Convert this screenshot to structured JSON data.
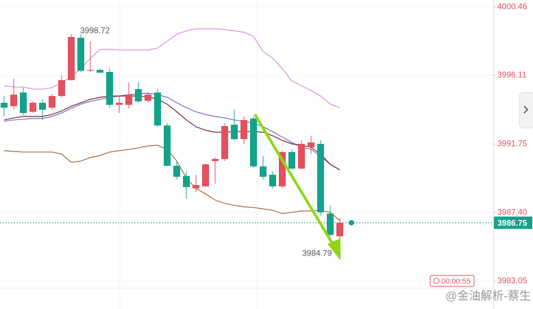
{
  "chart_data": {
    "type": "candlestick",
    "ylim": [
      3981.27,
      4000.9
    ],
    "yticks": [
      4000.46,
      3996.11,
      3991.75,
      {
        "value": 3987.4,
        "label": "3987.40"
      },
      3983.05
    ],
    "up_color": "#e2515e",
    "down_color": "#14a28c",
    "ohlc": [
      [
        3994.37,
        3994.8,
        3993.5,
        3994.06
      ],
      [
        3994.15,
        3995.89,
        3993.93,
        3994.89
      ],
      [
        3995.02,
        3995.33,
        3993.59,
        3993.72
      ],
      [
        3993.8,
        3994.46,
        3993.72,
        3994.37
      ],
      [
        3994.37,
        3994.59,
        3993.28,
        3993.93
      ],
      [
        3994.06,
        3994.93,
        3993.93,
        3994.8
      ],
      [
        3994.8,
        3996.11,
        3994.72,
        3995.81
      ],
      [
        3995.81,
        3998.72,
        3995.78,
        3998.55
      ],
      [
        3998.5,
        3998.72,
        3996.33,
        3996.41
      ],
      [
        3996.41,
        3998.28,
        3996.33,
        3996.46
      ],
      [
        3996.46,
        3996.54,
        3996.28,
        3996.28
      ],
      [
        3996.33,
        3996.54,
        3994.06,
        3994.24
      ],
      [
        3994.24,
        3994.8,
        3993.72,
        3994.37
      ],
      [
        3994.24,
        3995.67,
        3994.02,
        3994.89
      ],
      [
        3995.24,
        3995.67,
        3994.37,
        3994.46
      ],
      [
        3994.5,
        3995.02,
        3994.37,
        3994.89
      ],
      [
        3995.02,
        3995.24,
        3992.85,
        3992.93
      ],
      [
        3992.93,
        3993.07,
        3990.33,
        3990.37
      ],
      [
        3990.37,
        3990.67,
        3989.5,
        3989.67
      ],
      [
        3989.72,
        3990.02,
        3988.28,
        3989.02
      ],
      [
        3988.93,
        3989.8,
        3988.71,
        3989.15
      ],
      [
        3989.06,
        3990.5,
        3989.02,
        3990.46
      ],
      [
        3990.67,
        3990.89,
        3989.24,
        3990.8
      ],
      [
        3990.8,
        3993.07,
        3990.67,
        3992.89
      ],
      [
        3992.98,
        3993.93,
        3991.98,
        3992.06
      ],
      [
        3992.06,
        3993.5,
        3991.76,
        3993.28
      ],
      [
        3993.37,
        3993.5,
        3990.24,
        3990.33
      ],
      [
        3990.33,
        3990.98,
        3989.5,
        3989.67
      ],
      [
        3989.8,
        3990.02,
        3988.93,
        3989.06
      ],
      [
        3989.06,
        3991.33,
        3988.98,
        3991.24
      ],
      [
        3991.24,
        3991.41,
        3990.11,
        3990.19
      ],
      [
        3990.19,
        3991.98,
        3990.15,
        3991.76
      ],
      [
        3991.54,
        3992.28,
        3991.11,
        3991.85
      ],
      [
        3991.76,
        3991.98,
        3987.2,
        3987.41
      ],
      [
        3987.33,
        3987.85,
        3985.89,
        3985.98
      ],
      [
        3985.89,
        3987.05,
        3984.79,
        3986.75
      ]
    ],
    "series": [
      {
        "color": "#d98ad6",
        "values": [
          3995.46,
          3995.37,
          3995.37,
          3995.24,
          3995.24,
          3995.33,
          3995.67,
          3996.02,
          3996.54,
          3997.2,
          3997.76,
          3997.76,
          3997.72,
          3997.72,
          3997.72,
          3997.72,
          3997.85,
          3998.28,
          3998.72,
          3998.94,
          3999.07,
          3999.07,
          3999.07,
          3999.02,
          3998.94,
          3998.85,
          3998.59,
          3997.63,
          3997.2,
          3996.54,
          3995.76,
          3995.46,
          3995.15,
          3994.8,
          3994.28,
          3994.06
        ]
      },
      {
        "color": "#6b6fc9",
        "values": [
          3993.2,
          3993.28,
          3993.33,
          3993.37,
          3993.37,
          3993.5,
          3993.72,
          3994.02,
          3994.28,
          3994.46,
          3994.59,
          3994.72,
          3994.8,
          3994.89,
          3994.93,
          3994.98,
          3994.89,
          3994.72,
          3994.37,
          3994.06,
          3993.8,
          3993.63,
          3993.5,
          3993.41,
          3993.28,
          3993.2,
          3993.07,
          3992.85,
          3992.54,
          3992.19,
          3991.85,
          3991.54,
          3991.41,
          3990.98,
          3990.46,
          3990.11
        ]
      },
      {
        "color": "#7a1f2a",
        "values": [
          3993.28,
          3993.41,
          3993.5,
          3993.5,
          3993.5,
          3993.63,
          3993.85,
          3994.15,
          3994.37,
          3994.59,
          3994.72,
          3994.8,
          3994.8,
          3994.8,
          3994.8,
          3994.76,
          3994.59,
          3994.28,
          3993.8,
          3993.28,
          3992.85,
          3992.63,
          3992.5,
          3992.5,
          3992.54,
          3992.54,
          3992.54,
          3992.5,
          3992.28,
          3991.98,
          3991.76,
          3991.67,
          3991.54,
          3991.11,
          3990.46,
          3990.11
        ]
      },
      {
        "color": "#a0683e",
        "values": [
          3991.33,
          3991.28,
          3991.24,
          3991.24,
          3991.24,
          3991.24,
          3991.11,
          3990.59,
          3990.67,
          3990.89,
          3991.02,
          3991.24,
          3991.33,
          3991.41,
          3991.5,
          3991.63,
          3991.67,
          3991.41,
          3990.67,
          3989.59,
          3988.93,
          3988.59,
          3988.19,
          3987.98,
          3987.85,
          3987.76,
          3987.72,
          3987.63,
          3987.54,
          3987.33,
          3987.41,
          3987.5,
          3987.5,
          3987.54,
          3987.41,
          3986.89
        ]
      }
    ],
    "max_annotation": 3998.72,
    "min_annotation": 3984.79,
    "last_price": 3986.75,
    "last_price_color": "#14a28c",
    "countdown": "00:00:55",
    "watermark": "@金油解析-蔡生"
  }
}
